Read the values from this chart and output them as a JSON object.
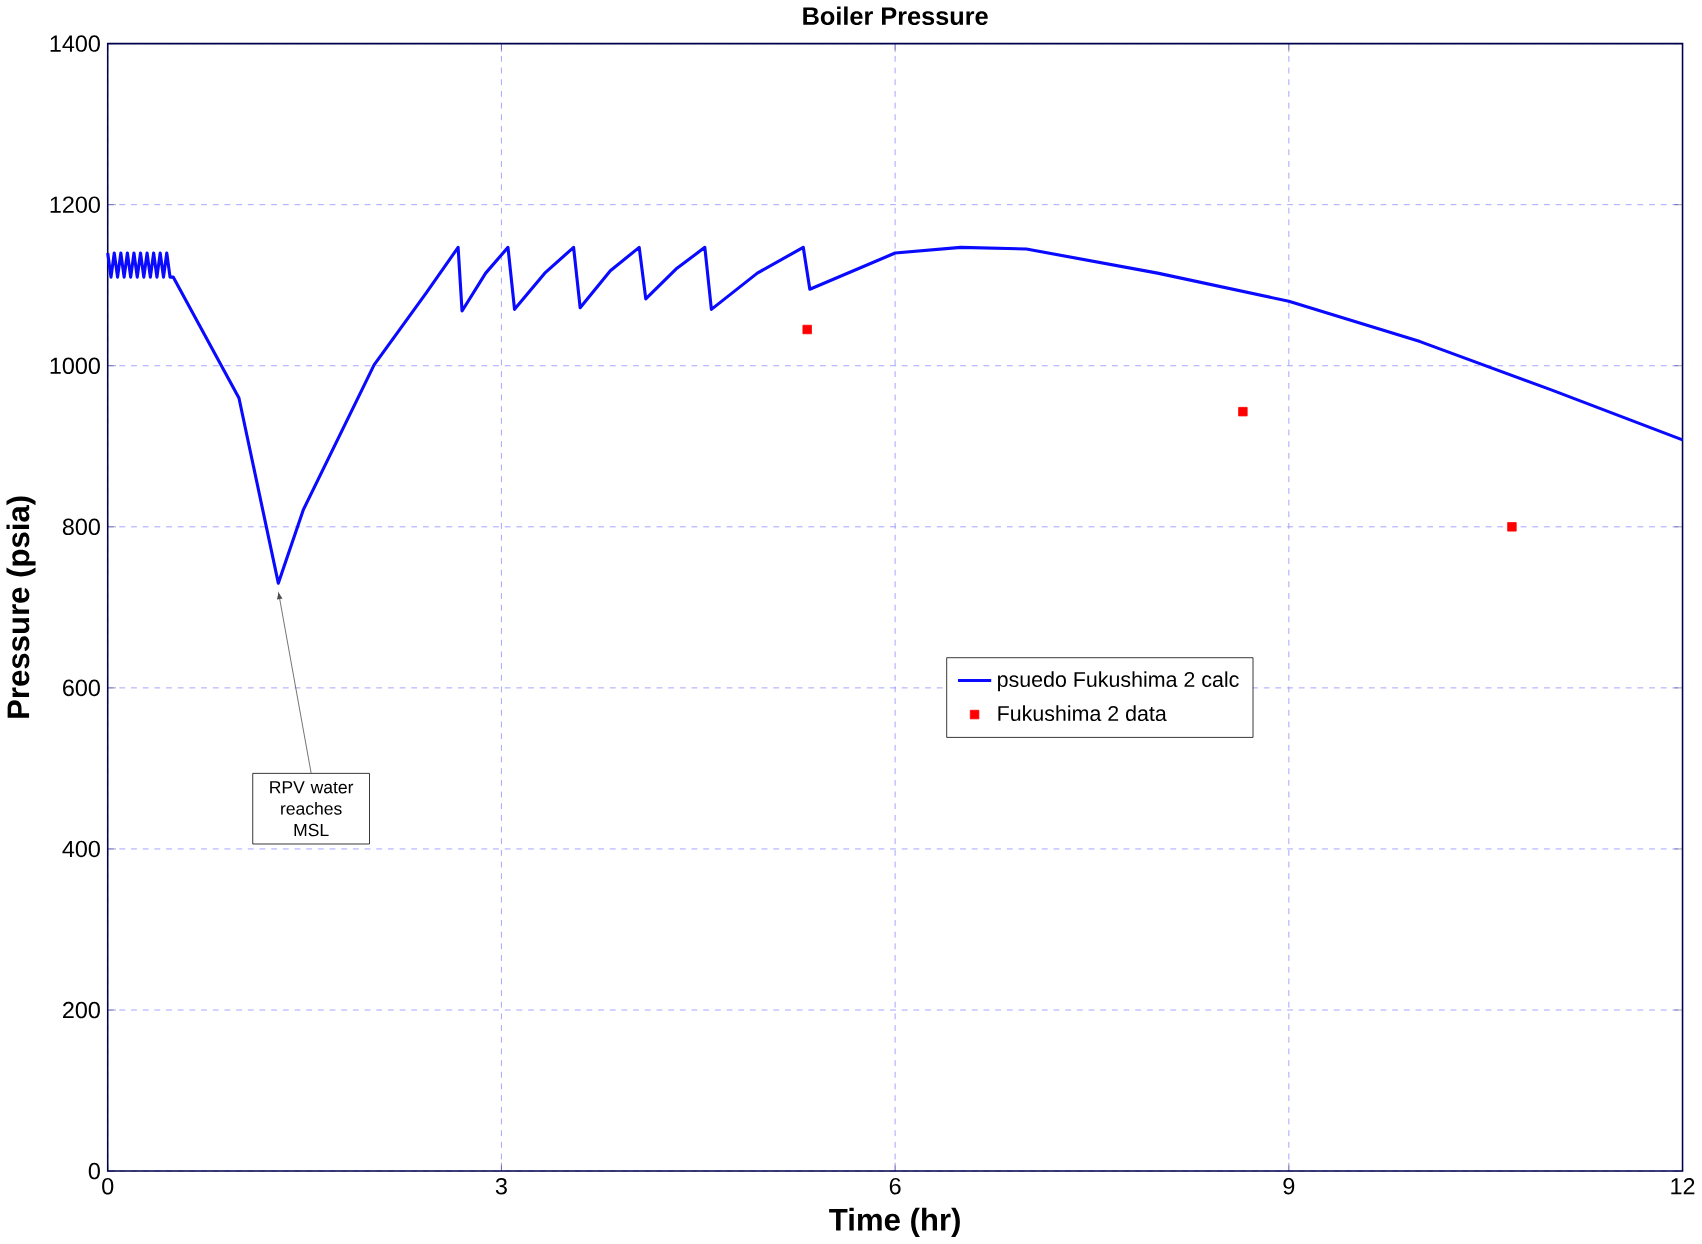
{
  "chart_data": {
    "type": "line",
    "title": "Boiler Pressure",
    "xlabel": "Time (hr)",
    "ylabel": "Pressure (psia)",
    "xlim": [
      0,
      12
    ],
    "ylim": [
      0,
      1400
    ],
    "xticks": [
      0,
      3,
      6,
      9,
      12
    ],
    "yticks": [
      0,
      200,
      400,
      600,
      800,
      1000,
      1200,
      1400
    ],
    "grid": true,
    "legend": "center",
    "line_style": "solid",
    "series": [
      {
        "name": "psuedo Fukushima 2 calc",
        "color": "#0a0aff",
        "x": [
          0,
          0.025,
          0.05,
          0.075,
          0.1,
          0.125,
          0.15,
          0.175,
          0.2,
          0.225,
          0.25,
          0.275,
          0.3,
          0.325,
          0.35,
          0.375,
          0.4,
          0.425,
          0.45,
          0.475,
          0.5,
          1.0,
          1.3,
          1.49,
          2.03,
          2.43,
          2.67,
          2.7,
          2.88,
          3.05,
          3.1,
          3.33,
          3.55,
          3.6,
          3.83,
          4.05,
          4.1,
          4.33,
          4.55,
          4.6,
          4.95,
          5.3,
          5.35,
          6.0,
          6.5,
          7.0,
          8.0,
          9.0,
          10.0,
          11.0,
          12.0
        ],
        "values": [
          1140,
          1110,
          1140,
          1110,
          1140,
          1110,
          1140,
          1110,
          1140,
          1110,
          1140,
          1110,
          1140,
          1110,
          1140,
          1110,
          1140,
          1110,
          1140,
          1110,
          1110,
          960,
          730,
          821,
          1001,
          1091,
          1147,
          1068,
          1115,
          1147,
          1070,
          1115,
          1147,
          1072,
          1118,
          1147,
          1083,
          1120,
          1147,
          1070,
          1115,
          1147,
          1095,
          1140,
          1147,
          1145,
          1115,
          1080,
          1030,
          970,
          908
        ]
      },
      {
        "name": "Fukushima 2 data",
        "type": "scatter",
        "marker": "square",
        "color": "#ff0000",
        "x": [
          5.33,
          8.65,
          10.7
        ],
        "values": [
          1045,
          943,
          800
        ]
      }
    ],
    "annotations": [
      {
        "text": "RPV water reaches MSL",
        "x": 1.3,
        "y": 730
      }
    ]
  }
}
